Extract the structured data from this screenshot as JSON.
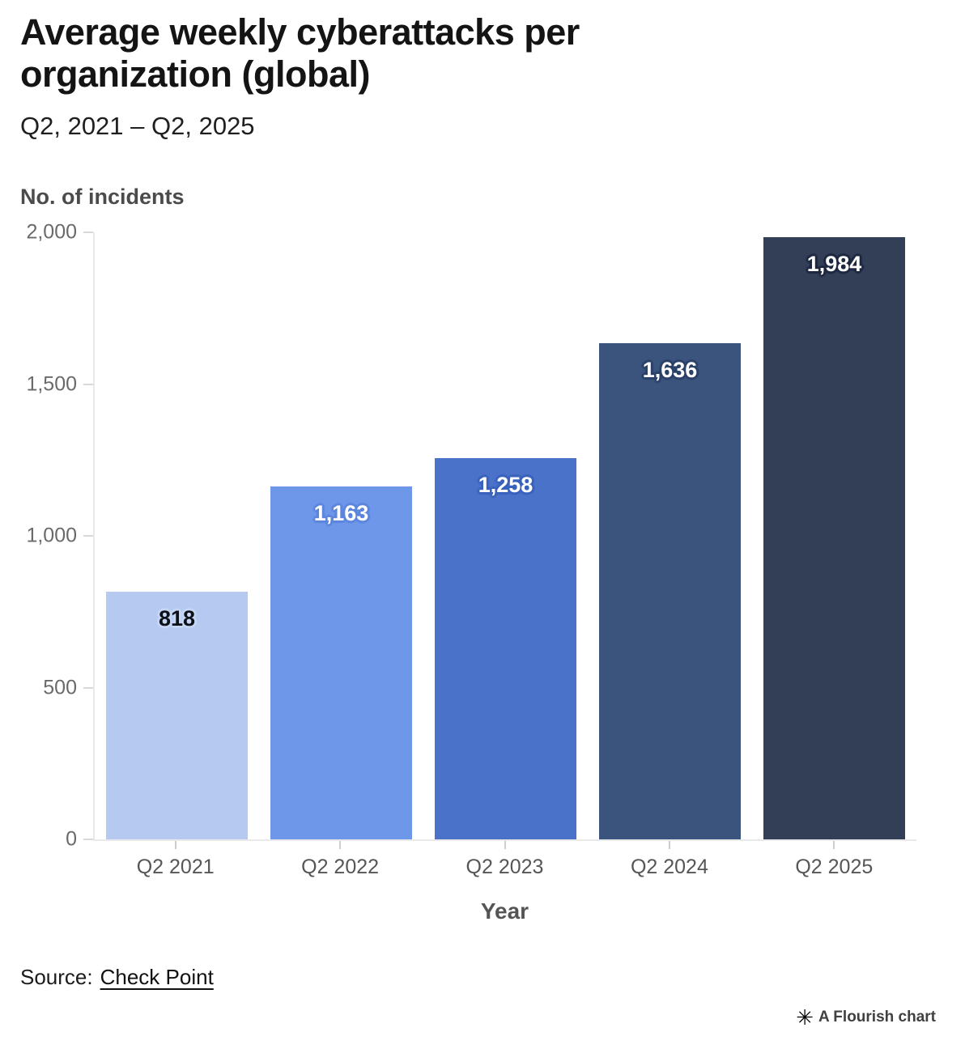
{
  "page": {
    "title": "Average weekly cyberattacks per organization (global)",
    "subtitle": "Q2, 2021 – Q2, 2025"
  },
  "chart_data": {
    "type": "bar",
    "title": "Average weekly cyberattacks per organization (global)",
    "subtitle": "Q2, 2021 – Q2, 2025",
    "xlabel": "Year",
    "ylabel": "No. of incidents",
    "categories": [
      "Q2 2021",
      "Q2 2022",
      "Q2 2023",
      "Q2 2024",
      "Q2 2025"
    ],
    "values": [
      818,
      1163,
      1258,
      1636,
      1984
    ],
    "value_labels": [
      "818",
      "1,163",
      "1,258",
      "1,636",
      "1,984"
    ],
    "bar_colors": [
      "#b5c9f1",
      "#6e96e9",
      "#4a72c9",
      "#3b547e",
      "#333e57"
    ],
    "label_text_colors": [
      "#0d1117",
      "#ffffff",
      "#ffffff",
      "#ffffff",
      "#ffffff"
    ],
    "label_halo_colors": [
      "#c6d6f6",
      "#5c86de",
      "#3a62bd",
      "#2c4269",
      "#1e2940"
    ],
    "ylim": [
      0,
      2000
    ],
    "yticks": [
      {
        "value": 0,
        "label": "0"
      },
      {
        "value": 500,
        "label": "500"
      },
      {
        "value": 1000,
        "label": "1,000"
      },
      {
        "value": 1500,
        "label": "1,500"
      },
      {
        "value": 2000,
        "label": "2,000"
      }
    ],
    "grid": false,
    "legend": "none"
  },
  "footer": {
    "source_prefix": "Source:",
    "source_link": "Check Point",
    "credit_icon": "✳",
    "credit_text": "A Flourish chart"
  }
}
